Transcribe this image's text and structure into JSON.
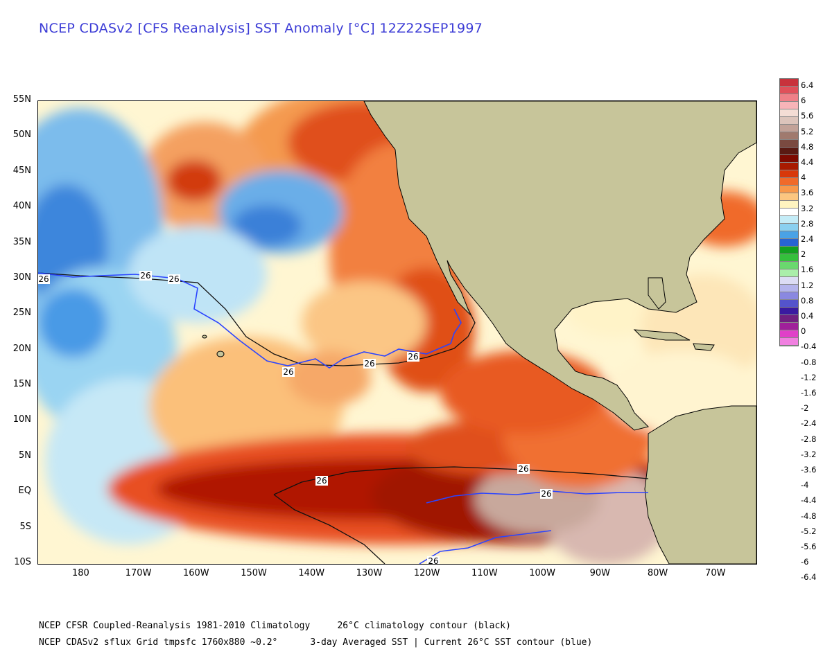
{
  "title": "NCEP CDASv2 [CFS Reanalysis] SST Anomaly [°C] 12Z22SEP1997",
  "map": {
    "lat_labels": [
      "55N",
      "50N",
      "45N",
      "40N",
      "35N",
      "30N",
      "25N",
      "20N",
      "15N",
      "10N",
      "5N",
      "EQ",
      "5S",
      "10S"
    ],
    "lat_values": [
      55,
      50,
      45,
      40,
      35,
      30,
      25,
      20,
      15,
      10,
      5,
      0,
      -5,
      -10
    ],
    "lon_labels": [
      "180",
      "170W",
      "160W",
      "150W",
      "140W",
      "130W",
      "120W",
      "110W",
      "100W",
      "90W",
      "80W",
      "70W"
    ],
    "lon_values": [
      180,
      170,
      160,
      150,
      140,
      130,
      120,
      110,
      100,
      90,
      80,
      70
    ],
    "lon_range": [
      187.5,
      63
    ],
    "lat_range": [
      55,
      -10
    ],
    "contour_label": "26",
    "colors": {
      "land": "#c9c69a",
      "ocean_neutral": "#fffbe6",
      "climatology_contour": "#111111",
      "current_contour": "#2b44ff"
    }
  },
  "colorbar": {
    "labels": [
      "6.4",
      "6",
      "5.6",
      "5.2",
      "4.8",
      "4.4",
      "4",
      "3.6",
      "3.2",
      "2.8",
      "2.4",
      "2",
      "1.6",
      "1.2",
      "0.8",
      "0.4",
      "0",
      "-0.4",
      "-0.8",
      "-1.2",
      "-1.6",
      "-2",
      "-2.4",
      "-2.8",
      "-3.2",
      "-3.6",
      "-4",
      "-4.4",
      "-4.8",
      "-5.2",
      "-5.6",
      "-6",
      "-6.4"
    ],
    "colors": [
      "#c8323c",
      "#e0505a",
      "#ef8088",
      "#f7b4b8",
      "#f4ddd5",
      "#dcc4bb",
      "#c2a298",
      "#a07a6e",
      "#7a4a40",
      "#5a1a12",
      "#7d0a00",
      "#a81a00",
      "#d8380a",
      "#f06a2a",
      "#f8984a",
      "#fcc680",
      "#fff4c0",
      "#ffffff",
      "#c4ecf7",
      "#8ad0f0",
      "#4aa2e6",
      "#2864d2",
      "#12a020",
      "#34c03c",
      "#6ad86e",
      "#aaeeaa",
      "#dcdcf4",
      "#b4b4ec",
      "#8a88e0",
      "#5454cc",
      "#3a1aa0",
      "#702080",
      "#a0209a",
      "#e040c8",
      "#f080e0"
    ]
  },
  "footer": {
    "line1": "NCEP CFSR Coupled-Reanalysis 1981-2010 Climatology     26°C climatology contour (black)",
    "line2": "NCEP CDASv2 sflux Grid tmpsfc 1760x880 ~0.2°      3-day Averaged SST | Current 26°C SST contour (blue)"
  }
}
